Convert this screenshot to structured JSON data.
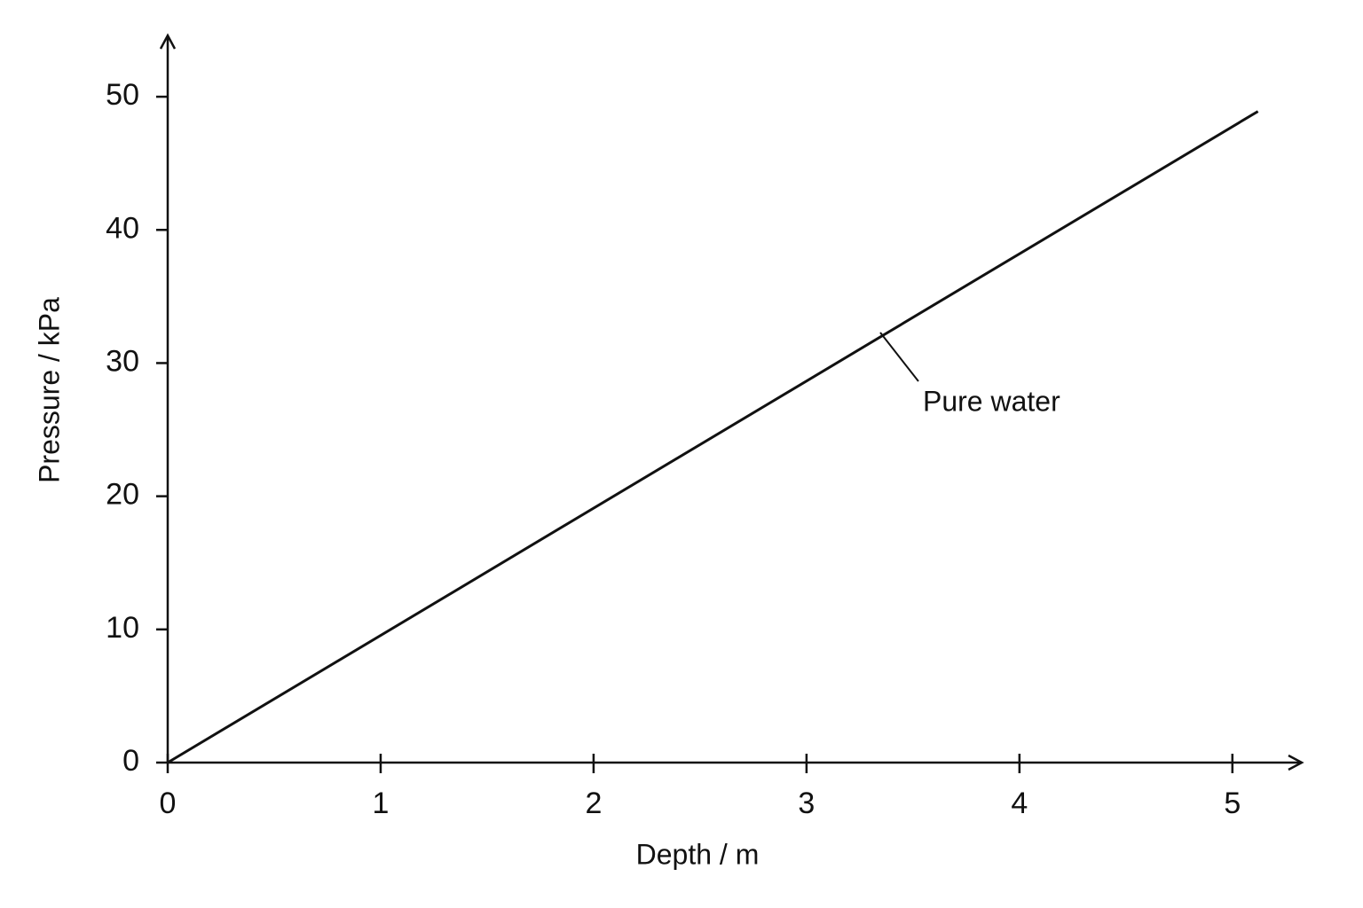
{
  "chart_data": {
    "type": "line",
    "x_label": "Depth / m",
    "y_label": "Pressure / kPa",
    "x": [
      0,
      5.12
    ],
    "series": [
      {
        "name": "Pure water",
        "color": "#111111",
        "values": [
          0,
          48.9
        ]
      }
    ],
    "xlim": [
      0,
      5.33
    ],
    "ylim": [
      0,
      54.6
    ],
    "xticks": [
      0,
      1,
      2,
      3,
      4,
      5
    ],
    "yticks": [
      0,
      10,
      20,
      30,
      40,
      50
    ],
    "grid": false
  }
}
